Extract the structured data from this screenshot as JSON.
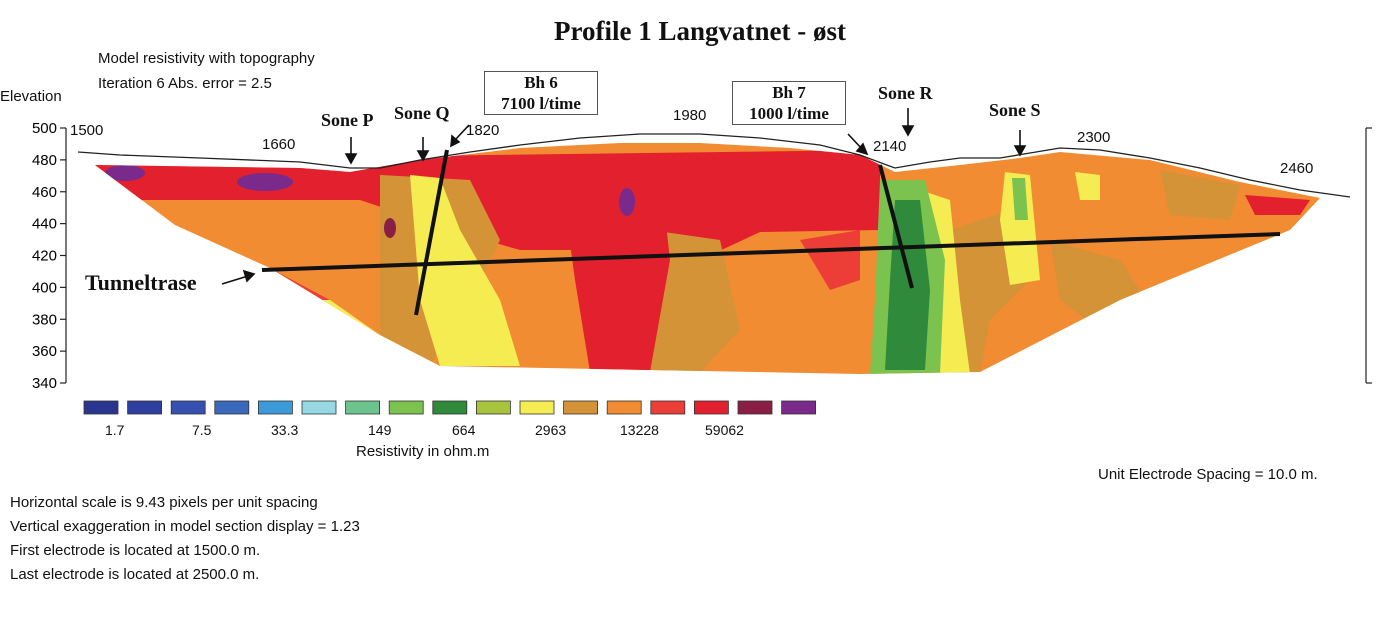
{
  "title": "Profile 1  Langvatnet - øst",
  "subtitle_lines": [
    "Model resistivity with topography",
    "Iteration 6 Abs. error = 2.5"
  ],
  "elevation_label": "Elevation",
  "zones": {
    "p": "Sone P",
    "q": "Sone Q",
    "r": "Sone R",
    "s": "Sone S"
  },
  "boreholes": {
    "bh6": {
      "name": "Bh 6",
      "flow": "7100 l/time"
    },
    "bh7": {
      "name": "Bh 7",
      "flow": "1000 l/time"
    }
  },
  "tunnel_label": "Tunneltrase",
  "legend": {
    "colors": [
      "#2a3590",
      "#2e3fa0",
      "#3550b0",
      "#3a68bb",
      "#3c9ad8",
      "#96d8e4",
      "#6cc38c",
      "#7cc24e",
      "#2f8a3c",
      "#a8c43c",
      "#f5ec52",
      "#d49336",
      "#f28c32",
      "#ec3d36",
      "#e3202e",
      "#8a1e44",
      "#7a2a8a"
    ],
    "labels": [
      "1.7",
      "7.5",
      "33.3",
      "149",
      "664",
      "2963",
      "13228",
      "59062"
    ],
    "title": "Resistivity in ohm.m"
  },
  "unit_spacing": "Unit Electrode Spacing = 10.0 m.",
  "notes": [
    "Horizontal scale is 9.43 pixels per unit spacing",
    "Vertical exaggeration in model section display = 1.23",
    "First electrode is located at 1500.0  m.",
    "Last electrode is located at 2500.0 m."
  ],
  "chart_data": {
    "type": "heatmap",
    "title": "Profile 1  Langvatnet - øst",
    "ylabel": "Elevation",
    "colorbar_label": "Resistivity in ohm.m",
    "colorbar_ticks": [
      1.7,
      7.5,
      33.3,
      149,
      664,
      2963,
      13228,
      59062
    ],
    "x_ticks": [
      1500,
      1660,
      1820,
      1980,
      2140,
      2300,
      2460
    ],
    "y_ticks": [
      340,
      360,
      380,
      400,
      420,
      440,
      460,
      480,
      500
    ],
    "ylim": [
      340,
      500
    ],
    "xlim": [
      1500,
      2500
    ],
    "zones": [
      {
        "name": "Sone P",
        "x": 1705
      },
      {
        "name": "Sone Q",
        "x": 1765
      },
      {
        "name": "Sone R",
        "x": 2155
      },
      {
        "name": "Sone S",
        "x": 2265
      }
    ],
    "boreholes": [
      {
        "name": "Bh 6",
        "flow": "7100 l/time"
      },
      {
        "name": "Bh 7",
        "flow": "1000 l/time"
      }
    ]
  }
}
